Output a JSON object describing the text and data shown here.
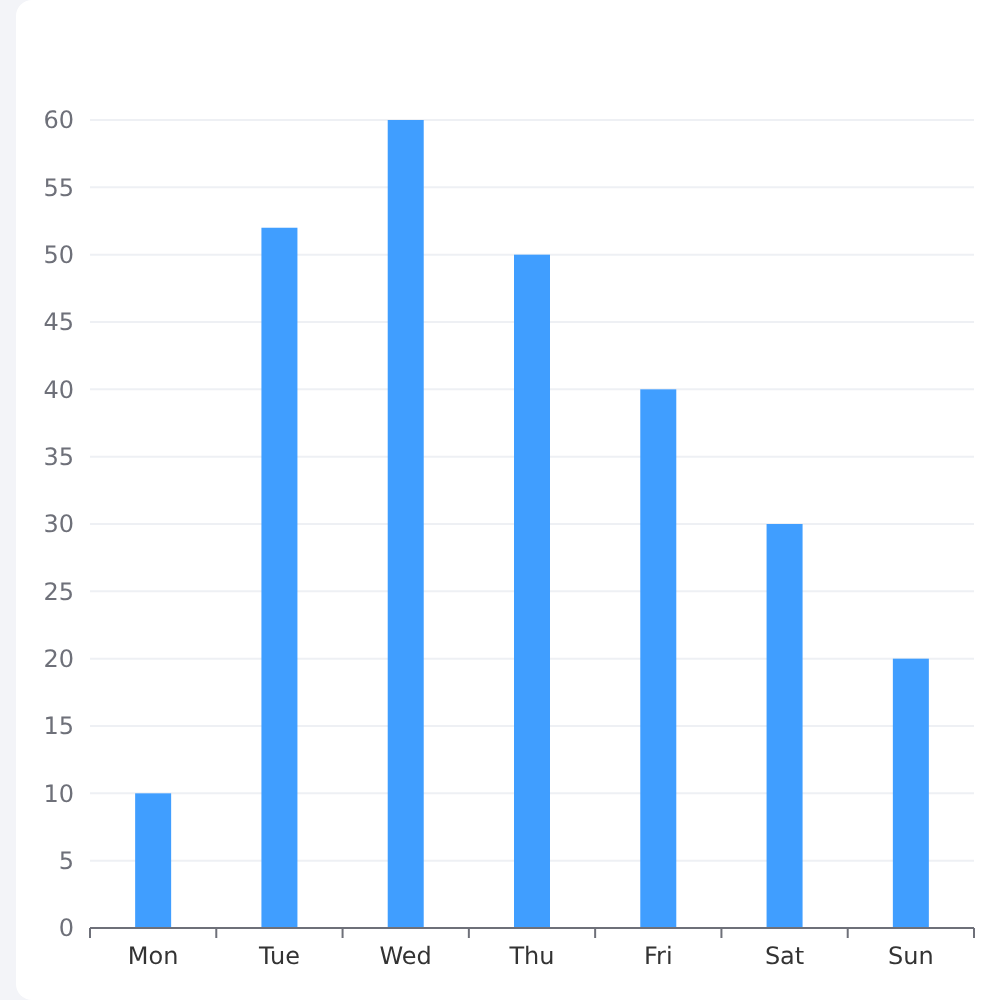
{
  "chart_data": {
    "type": "bar",
    "categories": [
      "Mon",
      "Tue",
      "Wed",
      "Thu",
      "Fri",
      "Sat",
      "Sun"
    ],
    "values": [
      10,
      52,
      60,
      50,
      40,
      30,
      20
    ],
    "color": "#409eff",
    "ylim": [
      0,
      60
    ],
    "yticks": [
      0,
      5,
      10,
      15,
      20,
      25,
      30,
      35,
      40,
      45,
      50,
      55,
      60
    ],
    "grid": "y"
  }
}
